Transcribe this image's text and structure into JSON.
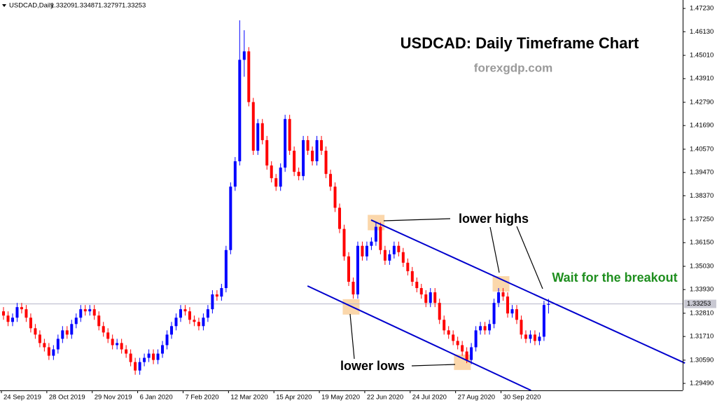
{
  "chart_data": {
    "type": "candlestick",
    "title": "USDCAD: Daily Timeframe Chart",
    "subtitle": "forexgdp.com",
    "symbol": "USDCAD,Daily",
    "annotations": [
      "lower highs",
      "lower lows",
      "Wait for the breakout"
    ],
    "up_color": "#0000ff",
    "down_color": "#ff0000",
    "trendline_color": "#0000cd",
    "highlight_color": "#f9c98f",
    "xlim": [
      0,
      150
    ],
    "xticks": [
      {
        "value": 0,
        "label": "24 Sep 2019"
      },
      {
        "value": 10,
        "label": "28 Oct 2019"
      },
      {
        "value": 20,
        "label": "29 Nov 2019"
      },
      {
        "value": 30,
        "label": "6 Jan 2020"
      },
      {
        "value": 40,
        "label": "7 Feb 2020"
      },
      {
        "value": 50,
        "label": "12 Mar 2020"
      },
      {
        "value": 60,
        "label": "15 Apr 2020"
      },
      {
        "value": 70,
        "label": "19 May 2020"
      },
      {
        "value": 80,
        "label": "22 Jun 2020"
      },
      {
        "value": 90,
        "label": "24 Jul 2020"
      },
      {
        "value": 100,
        "label": "27 Aug 2020"
      },
      {
        "value": 110,
        "label": "30 Sep 2020"
      }
    ],
    "ylim": [
      1.2916,
      1.4763
    ],
    "yticks": [
      {
        "value": 1.4723,
        "label": "1.47230"
      },
      {
        "value": 1.4613,
        "label": "1.46130"
      },
      {
        "value": 1.4501,
        "label": "1.45010"
      },
      {
        "value": 1.4391,
        "label": "1.43910"
      },
      {
        "value": 1.4279,
        "label": "1.42790"
      },
      {
        "value": 1.4169,
        "label": "1.41690"
      },
      {
        "value": 1.4057,
        "label": "1.40570"
      },
      {
        "value": 1.3947,
        "label": "1.39470"
      },
      {
        "value": 1.3837,
        "label": "1.38370"
      },
      {
        "value": 1.3725,
        "label": "1.37250"
      },
      {
        "value": 1.3615,
        "label": "1.36150"
      },
      {
        "value": 1.3503,
        "label": "1.35030"
      },
      {
        "value": 1.3393,
        "label": "1.33930"
      },
      {
        "value": 1.3281,
        "label": "1.32810"
      },
      {
        "value": 1.3171,
        "label": "1.31710"
      },
      {
        "value": 1.3059,
        "label": "1.30590"
      },
      {
        "value": 1.2949,
        "label": "1.29490"
      }
    ],
    "candles": [
      [
        1.329,
        1.331,
        1.325,
        1.327
      ],
      [
        1.327,
        1.329,
        1.322,
        1.324
      ],
      [
        1.324,
        1.328,
        1.322,
        1.326
      ],
      [
        1.326,
        1.333,
        1.324,
        1.331
      ],
      [
        1.331,
        1.333,
        1.328,
        1.33
      ],
      [
        1.33,
        1.332,
        1.324,
        1.326
      ],
      [
        1.326,
        1.328,
        1.319,
        1.321
      ],
      [
        1.321,
        1.323,
        1.316,
        1.318
      ],
      [
        1.318,
        1.32,
        1.312,
        1.314
      ],
      [
        1.314,
        1.316,
        1.31,
        1.312
      ],
      [
        1.312,
        1.314,
        1.306,
        1.308
      ],
      [
        1.308,
        1.313,
        1.306,
        1.311
      ],
      [
        1.311,
        1.318,
        1.309,
        1.316
      ],
      [
        1.316,
        1.322,
        1.314,
        1.32
      ],
      [
        1.32,
        1.322,
        1.316,
        1.318
      ],
      [
        1.318,
        1.325,
        1.316,
        1.323
      ],
      [
        1.323,
        1.328,
        1.321,
        1.326
      ],
      [
        1.326,
        1.332,
        1.324,
        1.33
      ],
      [
        1.33,
        1.332,
        1.327,
        1.329
      ],
      [
        1.329,
        1.332,
        1.327,
        1.33
      ],
      [
        1.33,
        1.332,
        1.325,
        1.327
      ],
      [
        1.327,
        1.329,
        1.32,
        1.322
      ],
      [
        1.322,
        1.324,
        1.317,
        1.319
      ],
      [
        1.319,
        1.321,
        1.314,
        1.316
      ],
      [
        1.316,
        1.318,
        1.311,
        1.313
      ],
      [
        1.313,
        1.316,
        1.311,
        1.314
      ],
      [
        1.314,
        1.316,
        1.309,
        1.311
      ],
      [
        1.311,
        1.313,
        1.307,
        1.309
      ],
      [
        1.309,
        1.311,
        1.303,
        1.305
      ],
      [
        1.305,
        1.307,
        1.299,
        1.301
      ],
      [
        1.301,
        1.307,
        1.299,
        1.305
      ],
      [
        1.305,
        1.309,
        1.303,
        1.307
      ],
      [
        1.307,
        1.311,
        1.305,
        1.309
      ],
      [
        1.309,
        1.311,
        1.304,
        1.306
      ],
      [
        1.306,
        1.311,
        1.304,
        1.309
      ],
      [
        1.309,
        1.315,
        1.307,
        1.313
      ],
      [
        1.313,
        1.32,
        1.311,
        1.318
      ],
      [
        1.318,
        1.324,
        1.316,
        1.322
      ],
      [
        1.322,
        1.328,
        1.32,
        1.326
      ],
      [
        1.326,
        1.332,
        1.324,
        1.33
      ],
      [
        1.33,
        1.332,
        1.327,
        1.329
      ],
      [
        1.329,
        1.331,
        1.323,
        1.325
      ],
      [
        1.325,
        1.327,
        1.322,
        1.324
      ],
      [
        1.324,
        1.326,
        1.32,
        1.322
      ],
      [
        1.322,
        1.328,
        1.32,
        1.326
      ],
      [
        1.326,
        1.332,
        1.324,
        1.33
      ],
      [
        1.33,
        1.339,
        1.328,
        1.337
      ],
      [
        1.337,
        1.339,
        1.334,
        1.336
      ],
      [
        1.336,
        1.342,
        1.334,
        1.34
      ],
      [
        1.34,
        1.36,
        1.338,
        1.358
      ],
      [
        1.358,
        1.39,
        1.356,
        1.388
      ],
      [
        1.388,
        1.402,
        1.386,
        1.4
      ],
      [
        1.4,
        1.4667,
        1.398,
        1.448
      ],
      [
        1.448,
        1.462,
        1.44,
        1.452
      ],
      [
        1.452,
        1.454,
        1.426,
        1.428
      ],
      [
        1.428,
        1.43,
        1.403,
        1.405
      ],
      [
        1.405,
        1.42,
        1.403,
        1.418
      ],
      [
        1.418,
        1.42,
        1.408,
        1.41
      ],
      [
        1.41,
        1.412,
        1.396,
        1.398
      ],
      [
        1.398,
        1.4,
        1.39,
        1.392
      ],
      [
        1.392,
        1.394,
        1.386,
        1.388
      ],
      [
        1.388,
        1.399,
        1.386,
        1.397
      ],
      [
        1.397,
        1.422,
        1.395,
        1.42
      ],
      [
        1.42,
        1.422,
        1.403,
        1.405
      ],
      [
        1.405,
        1.407,
        1.393,
        1.395
      ],
      [
        1.395,
        1.397,
        1.391,
        1.393
      ],
      [
        1.393,
        1.412,
        1.391,
        1.41
      ],
      [
        1.41,
        1.412,
        1.403,
        1.405
      ],
      [
        1.405,
        1.407,
        1.398,
        1.4
      ],
      [
        1.4,
        1.412,
        1.398,
        1.41
      ],
      [
        1.41,
        1.412,
        1.403,
        1.405
      ],
      [
        1.405,
        1.407,
        1.392,
        1.394
      ],
      [
        1.394,
        1.396,
        1.386,
        1.388
      ],
      [
        1.388,
        1.39,
        1.376,
        1.378
      ],
      [
        1.378,
        1.38,
        1.366,
        1.368
      ],
      [
        1.368,
        1.37,
        1.353,
        1.355
      ],
      [
        1.355,
        1.357,
        1.341,
        1.343
      ],
      [
        1.343,
        1.345,
        1.335,
        1.337
      ],
      [
        1.337,
        1.362,
        1.335,
        1.36
      ],
      [
        1.36,
        1.362,
        1.353,
        1.355
      ],
      [
        1.355,
        1.362,
        1.353,
        1.36
      ],
      [
        1.36,
        1.364,
        1.358,
        1.362
      ],
      [
        1.362,
        1.371,
        1.36,
        1.369
      ],
      [
        1.369,
        1.371,
        1.356,
        1.358
      ],
      [
        1.358,
        1.36,
        1.351,
        1.353
      ],
      [
        1.353,
        1.358,
        1.351,
        1.356
      ],
      [
        1.356,
        1.362,
        1.354,
        1.36
      ],
      [
        1.36,
        1.362,
        1.355,
        1.357
      ],
      [
        1.357,
        1.359,
        1.35,
        1.352
      ],
      [
        1.352,
        1.354,
        1.346,
        1.348
      ],
      [
        1.348,
        1.35,
        1.341,
        1.343
      ],
      [
        1.343,
        1.345,
        1.338,
        1.34
      ],
      [
        1.34,
        1.342,
        1.335,
        1.337
      ],
      [
        1.337,
        1.339,
        1.331,
        1.333
      ],
      [
        1.333,
        1.34,
        1.331,
        1.338
      ],
      [
        1.338,
        1.34,
        1.331,
        1.333
      ],
      [
        1.333,
        1.335,
        1.323,
        1.325
      ],
      [
        1.325,
        1.327,
        1.318,
        1.32
      ],
      [
        1.32,
        1.322,
        1.316,
        1.318
      ],
      [
        1.318,
        1.32,
        1.313,
        1.315
      ],
      [
        1.315,
        1.317,
        1.311,
        1.313
      ],
      [
        1.313,
        1.315,
        1.308,
        1.31
      ],
      [
        1.31,
        1.312,
        1.3045,
        1.306
      ],
      [
        1.306,
        1.314,
        1.304,
        1.312
      ],
      [
        1.312,
        1.322,
        1.31,
        1.32
      ],
      [
        1.32,
        1.324,
        1.318,
        1.322
      ],
      [
        1.322,
        1.324,
        1.318,
        1.32
      ],
      [
        1.32,
        1.325,
        1.318,
        1.323
      ],
      [
        1.323,
        1.335,
        1.321,
        1.333
      ],
      [
        1.333,
        1.34,
        1.331,
        1.338
      ],
      [
        1.338,
        1.34,
        1.334,
        1.336
      ],
      [
        1.336,
        1.338,
        1.326,
        1.328
      ],
      [
        1.328,
        1.332,
        1.326,
        1.33
      ],
      [
        1.33,
        1.332,
        1.323,
        1.325
      ],
      [
        1.325,
        1.327,
        1.316,
        1.318
      ],
      [
        1.318,
        1.32,
        1.314,
        1.316
      ],
      [
        1.316,
        1.32,
        1.314,
        1.318
      ],
      [
        1.318,
        1.32,
        1.313,
        1.315
      ],
      [
        1.315,
        1.319,
        1.313,
        1.317
      ],
      [
        1.317,
        1.334,
        1.315,
        1.332
      ],
      [
        1.33209,
        1.33487,
        1.32797,
        1.33253
      ]
    ],
    "trendlines": [
      {
        "from": [
          81.4,
          1.3722
        ],
        "to": [
          150.5,
          1.3045
        ]
      },
      {
        "from": [
          67.4,
          1.341
        ],
        "to": [
          116.6,
          1.2916
        ]
      }
    ],
    "highlights": [
      [
        82.5,
        1.371
      ],
      [
        77,
        1.3311
      ],
      [
        110,
        1.342
      ],
      [
        101.5,
        1.3049
      ]
    ]
  }
}
